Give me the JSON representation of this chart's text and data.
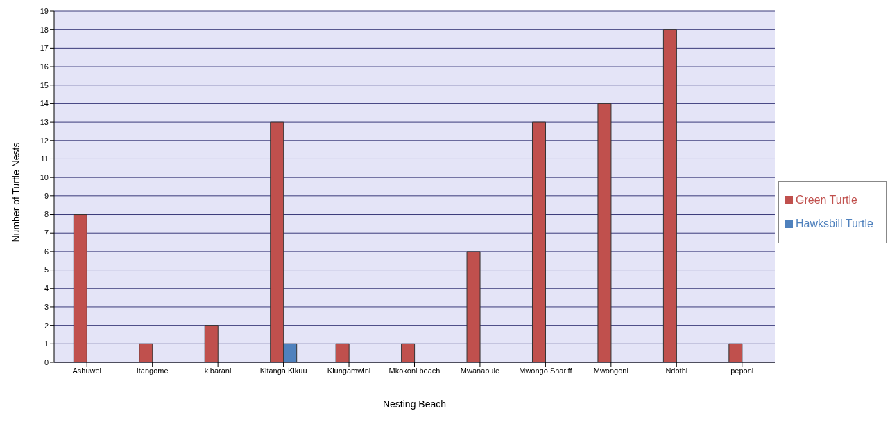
{
  "chart_data": {
    "type": "bar",
    "xlabel": "Nesting Beach",
    "ylabel": "Number of Turtle Nests",
    "categories": [
      "Ashuwei",
      "Itangome",
      "kibarani",
      "Kitanga Kikuu",
      "Kiungamwini",
      "Mkokoni beach",
      "Mwanabule",
      "Mwongo Shariff",
      "Mwongoni",
      "Ndothi",
      "peponi"
    ],
    "series": [
      {
        "name": "Green Turtle",
        "color": "#c0504d",
        "values": [
          8,
          1,
          2,
          13,
          1,
          1,
          6,
          13,
          14,
          18,
          1
        ]
      },
      {
        "name": "Hawksbill Turtle",
        "color": "#4f81bd",
        "values": [
          null,
          null,
          null,
          1,
          null,
          null,
          null,
          null,
          null,
          null,
          null
        ]
      }
    ],
    "ylim": [
      0,
      19
    ],
    "yticks": [
      0,
      1,
      2,
      3,
      4,
      5,
      6,
      7,
      8,
      9,
      10,
      11,
      12,
      13,
      14,
      15,
      16,
      17,
      18,
      19
    ],
    "grid": "y",
    "legend": "right"
  }
}
